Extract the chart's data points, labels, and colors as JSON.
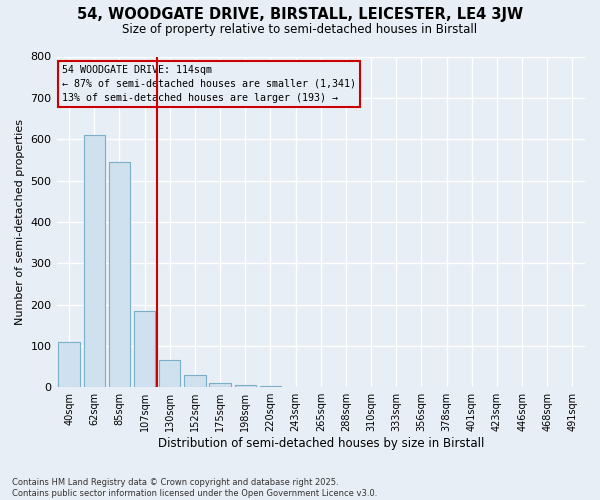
{
  "title": "54, WOODGATE DRIVE, BIRSTALL, LEICESTER, LE4 3JW",
  "subtitle": "Size of property relative to semi-detached houses in Birstall",
  "xlabel": "Distribution of semi-detached houses by size in Birstall",
  "ylabel": "Number of semi-detached properties",
  "categories": [
    "40sqm",
    "62sqm",
    "85sqm",
    "107sqm",
    "130sqm",
    "152sqm",
    "175sqm",
    "198sqm",
    "220sqm",
    "243sqm",
    "265sqm",
    "288sqm",
    "310sqm",
    "333sqm",
    "356sqm",
    "378sqm",
    "401sqm",
    "423sqm",
    "446sqm",
    "468sqm",
    "491sqm"
  ],
  "values": [
    110,
    610,
    545,
    185,
    65,
    30,
    10,
    5,
    2,
    1,
    0,
    0,
    0,
    0,
    0,
    0,
    0,
    0,
    0,
    0,
    0
  ],
  "bar_color": "#cfe0ef",
  "bar_edge_color": "#7aafc8",
  "vline_color": "#cc0000",
  "annotation_title": "54 WOODGATE DRIVE: 114sqm",
  "annotation_line1": "← 87% of semi-detached houses are smaller (1,341)",
  "annotation_line2": "13% of semi-detached houses are larger (193) →",
  "annotation_box_color": "#cc0000",
  "ylim": [
    0,
    800
  ],
  "yticks": [
    0,
    100,
    200,
    300,
    400,
    500,
    600,
    700,
    800
  ],
  "background_color": "#e8eef5",
  "grid_color": "#ffffff",
  "footer_line1": "Contains HM Land Registry data © Crown copyright and database right 2025.",
  "footer_line2": "Contains public sector information licensed under the Open Government Licence v3.0."
}
